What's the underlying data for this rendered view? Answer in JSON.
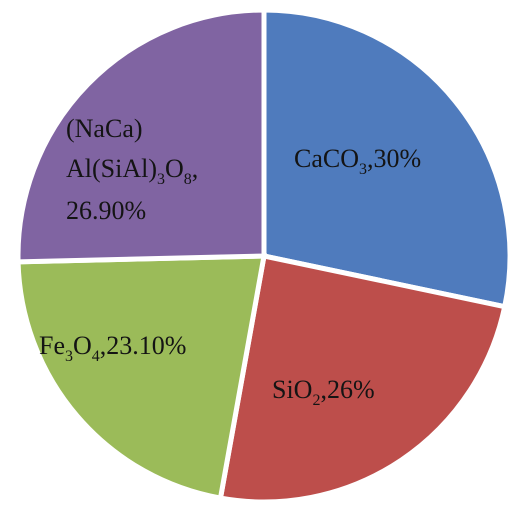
{
  "chart_data": {
    "type": "pie",
    "title": "",
    "series": [
      {
        "slices": [
          {
            "label": "CaCO3,30%",
            "parts": [
              "CaCO",
              "3",
              ",30%"
            ],
            "value": 30,
            "color": "#4f7bbd"
          },
          {
            "label": "SiO2,26%",
            "parts": [
              "SiO",
              "2",
              ",26%"
            ],
            "value": 26,
            "color": "#bd4e4b"
          },
          {
            "label": "Fe3O4,23.10%",
            "parts": [
              "Fe",
              "3",
              "O",
              "4",
              ",23.10%"
            ],
            "value": 23.1,
            "color": "#9bbb59"
          },
          {
            "label": "(NaCa) Al(SiAl)3O8, 26.90%",
            "lines": [
              [
                "(NaCa)"
              ],
              [
                "Al(SiAl)",
                "3",
                "O",
                "8",
                ","
              ],
              [
                "26.90%"
              ]
            ],
            "value": 26.9,
            "color": "#8064a2"
          }
        ]
      }
    ]
  }
}
